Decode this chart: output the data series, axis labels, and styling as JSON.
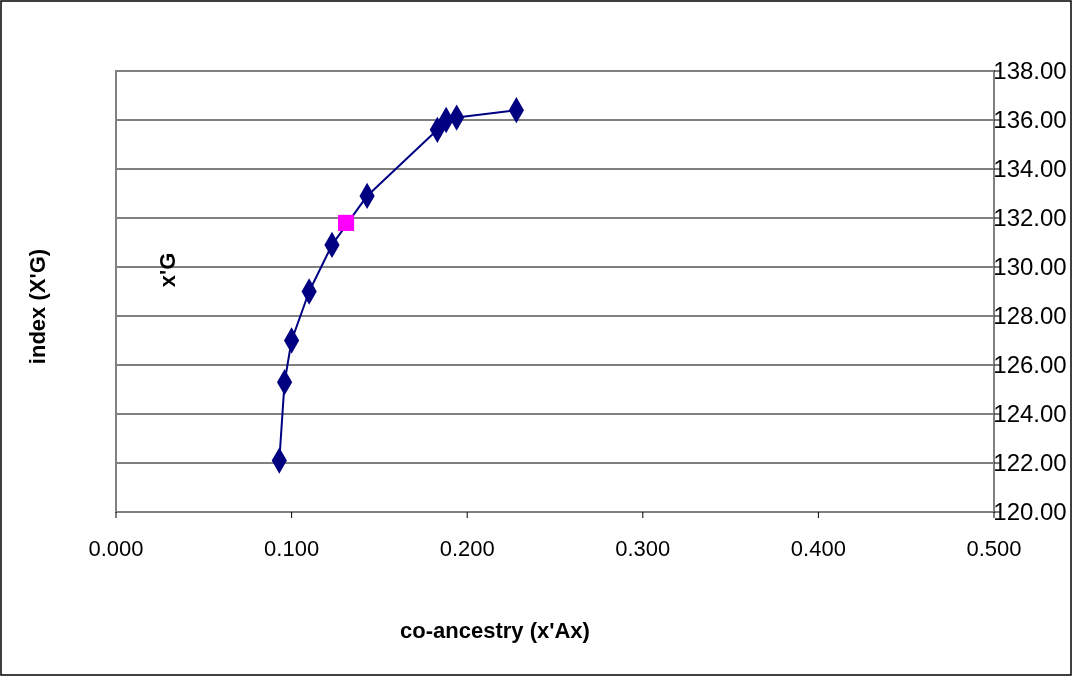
{
  "chart_data": {
    "type": "line",
    "xlabel": "co-ancestry (x'Ax)",
    "ylabel": "index (X'G)",
    "annotations": [
      "x'G"
    ],
    "xlim": [
      0,
      0.5
    ],
    "xticks": [
      {
        "value": 0,
        "label": "0.000"
      },
      {
        "value": 0.1,
        "label": "0.100"
      },
      {
        "value": 0.2,
        "label": "0.200"
      },
      {
        "value": 0.3,
        "label": "0.300"
      },
      {
        "value": 0.4,
        "label": "0.400"
      },
      {
        "value": 0.5,
        "label": "0.500"
      }
    ],
    "ylim": [
      120,
      138
    ],
    "yticks": [
      {
        "value": 120,
        "label": "120.00"
      },
      {
        "value": 122,
        "label": "122.00"
      },
      {
        "value": 124,
        "label": "124.00"
      },
      {
        "value": 126,
        "label": "126.00"
      },
      {
        "value": 128,
        "label": "128.00"
      },
      {
        "value": 130,
        "label": "130.00"
      },
      {
        "value": 132,
        "label": "132.00"
      },
      {
        "value": 134,
        "label": "134.00"
      },
      {
        "value": 136,
        "label": "136.00"
      },
      {
        "value": 138,
        "label": "138.00"
      }
    ],
    "grid": "y",
    "series": [
      {
        "marker": "diamond",
        "color": "#000080",
        "x": [
          0.093,
          0.096,
          0.1,
          0.11,
          0.123,
          0.143,
          0.183,
          0.188,
          0.194,
          0.228
        ],
        "values": [
          122.1,
          125.3,
          127.0,
          129.0,
          130.9,
          132.9,
          135.6,
          136.0,
          136.1,
          136.4
        ]
      },
      {
        "type": "scatter",
        "marker": "square",
        "color": "#ff00ff",
        "x": [
          0.131
        ],
        "values": [
          131.8
        ]
      }
    ]
  }
}
